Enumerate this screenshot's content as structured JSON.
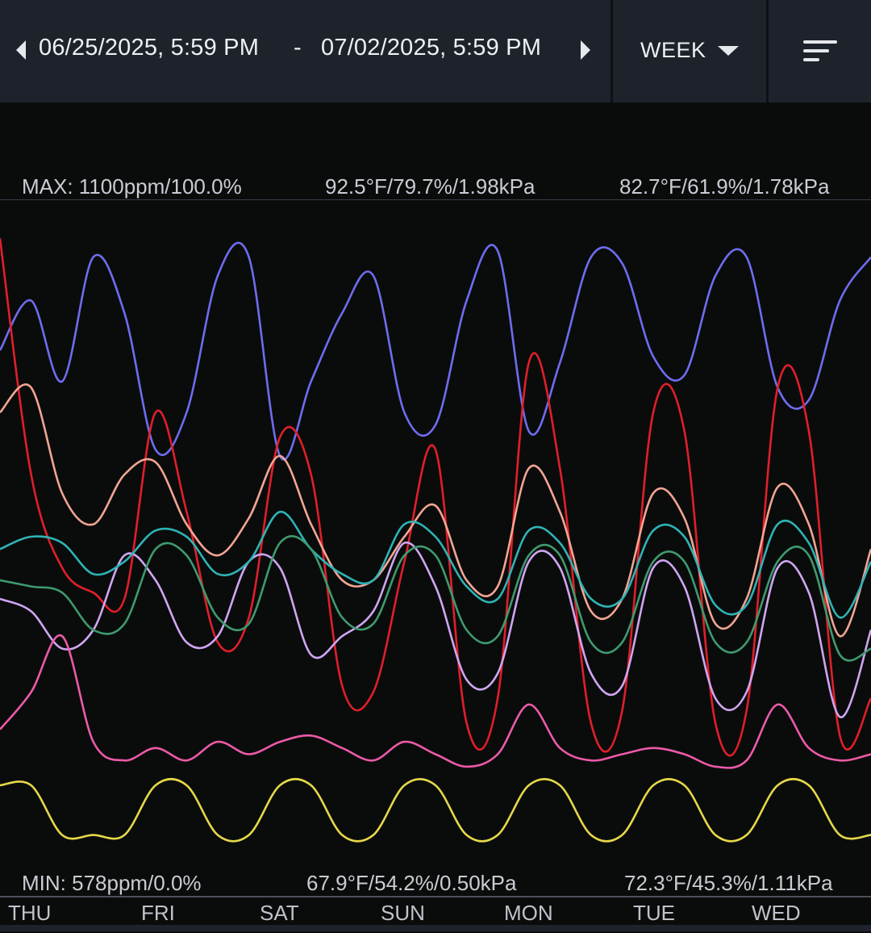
{
  "header": {
    "start": "06/25/2025, 5:59 PM",
    "separator": "-",
    "end": "07/02/2025, 5:59 PM",
    "period": "WEEK",
    "icons": {
      "prev": "chevron-left-icon",
      "next": "chevron-right-icon",
      "dropdown": "caret-down-icon",
      "menu": "sort-menu-icon"
    }
  },
  "labels": {
    "max": [
      "MAX: 1100ppm/100.0%",
      "92.5°F/79.7%/1.98kPa",
      "82.7°F/61.9%/1.78kPa"
    ],
    "min": [
      "MIN: 578ppm/0.0%",
      "67.9°F/54.2%/0.50kPa",
      "72.3°F/45.3%/1.11kPa"
    ]
  },
  "days": [
    "THU",
    "FRI",
    "SAT",
    "SUN",
    "MON",
    "TUE",
    "WED"
  ],
  "chart_data": {
    "type": "line",
    "x": [
      0,
      0.25,
      0.5,
      0.75,
      1,
      1.25,
      1.5,
      1.75,
      2,
      2.25,
      2.5,
      2.75,
      3,
      3.25,
      3.5,
      3.75,
      4,
      4.25,
      4.5,
      4.75,
      5,
      5.25,
      5.5,
      5.75,
      6,
      6.25,
      6.5,
      6.75,
      7
    ],
    "xlim": [
      0,
      7
    ],
    "ylim": [
      0,
      100
    ],
    "series": [
      {
        "color": "#6f6cf0",
        "values": [
          80,
          88,
          75,
          95,
          86,
          64,
          70,
          92,
          95,
          63,
          75,
          86,
          92,
          70,
          68,
          88,
          96,
          67,
          78,
          95,
          94,
          79,
          76,
          92,
          95,
          74,
          72,
          88,
          95
        ]
      },
      {
        "color": "#e01f2a",
        "values": [
          98,
          60,
          45,
          41,
          40,
          70,
          54,
          33,
          37,
          66,
          60,
          26,
          25,
          46,
          64,
          20,
          24,
          78,
          61,
          20,
          22,
          70,
          67,
          20,
          22,
          74,
          67,
          18,
          24
        ]
      },
      {
        "color": "#f2a593",
        "values": [
          70,
          74,
          57,
          52,
          60,
          62,
          52,
          47,
          53,
          63,
          52,
          43,
          43,
          50,
          55,
          43,
          42,
          61,
          54,
          38,
          40,
          57,
          53,
          36,
          40,
          58,
          52,
          34,
          48
        ]
      },
      {
        "color": "#cfa6f2",
        "values": [
          40,
          38,
          32,
          35,
          47,
          43,
          33,
          34,
          46,
          45,
          31,
          34,
          38,
          49,
          42,
          27,
          28,
          46,
          45,
          28,
          26,
          45,
          42,
          24,
          25,
          45,
          41,
          21,
          35
        ]
      },
      {
        "color": "#2fb3b6",
        "values": [
          48,
          50,
          49,
          44,
          46,
          51,
          50,
          44,
          46,
          54,
          48,
          44,
          43,
          52,
          50,
          42,
          40,
          51,
          49,
          40,
          40,
          51,
          50,
          39,
          39,
          52,
          49,
          37,
          46
        ]
      },
      {
        "color": "#3f9a6f",
        "values": [
          43,
          42,
          41,
          35,
          36,
          48,
          47,
          37,
          36,
          49,
          48,
          37,
          36,
          47,
          47,
          35,
          34,
          47,
          47,
          33,
          33,
          46,
          46,
          33,
          33,
          46,
          47,
          31,
          32
        ]
      },
      {
        "color": "#ec5aa8",
        "values": [
          19,
          25,
          34,
          17,
          14,
          16,
          14,
          17,
          15,
          17,
          18,
          16,
          14,
          17,
          15,
          13,
          15,
          23,
          16,
          14,
          15,
          16,
          15,
          13,
          14,
          23,
          16,
          14,
          15
        ]
      },
      {
        "color": "#e6d84a",
        "values": [
          10,
          10,
          2,
          2,
          2,
          10,
          10,
          2,
          2,
          10,
          10,
          2,
          2,
          10,
          10,
          2,
          2,
          10,
          10,
          2,
          2,
          10,
          10,
          2,
          2,
          10,
          10,
          2,
          2
        ]
      }
    ]
  }
}
